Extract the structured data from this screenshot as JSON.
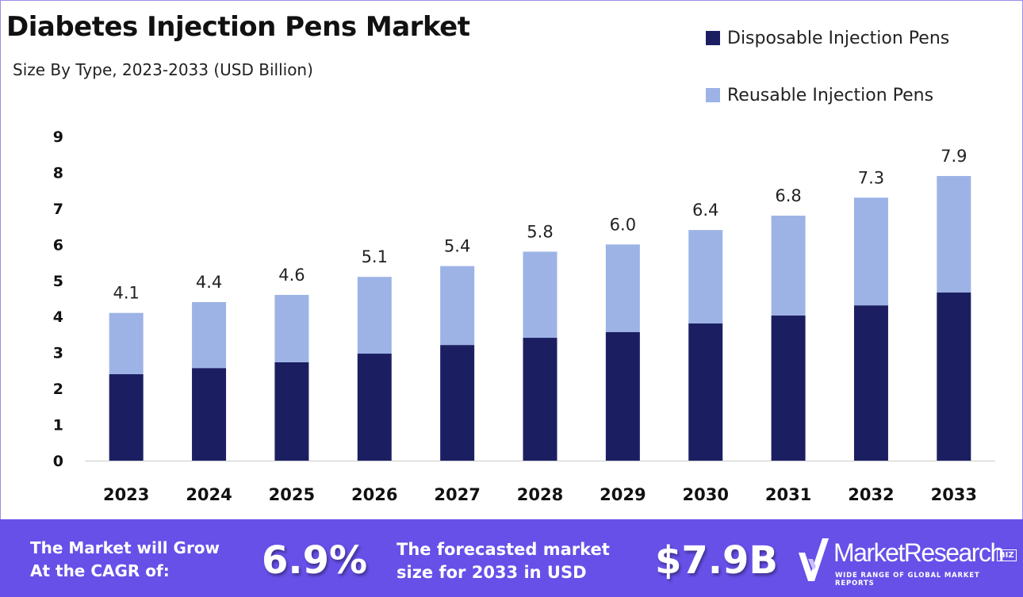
{
  "chart_data": {
    "type": "bar",
    "stacked": true,
    "title": "Diabetes Injection Pens Market",
    "subtitle": "Size By Type, 2023-2033 (USD Billion)",
    "categories": [
      "2023",
      "2024",
      "2025",
      "2026",
      "2027",
      "2028",
      "2029",
      "2030",
      "2031",
      "2032",
      "2033"
    ],
    "series": [
      {
        "name": "Disposable Injection Pens",
        "color": "#1b1f62",
        "values": [
          2.4,
          2.57,
          2.73,
          2.97,
          3.21,
          3.41,
          3.57,
          3.81,
          4.03,
          4.31,
          4.67
        ]
      },
      {
        "name": "Reusable Injection Pens",
        "color": "#9db3e6",
        "values": [
          1.7,
          1.83,
          1.87,
          2.13,
          2.19,
          2.39,
          2.43,
          2.59,
          2.77,
          2.99,
          3.23
        ]
      }
    ],
    "totals": [
      "4.1",
      "4.4",
      "4.6",
      "5.1",
      "5.4",
      "5.8",
      "6.0",
      "6.4",
      "6.8",
      "7.3",
      "7.9"
    ],
    "ylim": [
      0,
      9
    ],
    "yticks": [
      "0",
      "1",
      "2",
      "3",
      "4",
      "5",
      "6",
      "7",
      "8",
      "9"
    ],
    "xlabel": "",
    "ylabel": "",
    "grid": false,
    "legend_position": "top-right"
  },
  "banner": {
    "cagr_label": [
      "The Market will Grow",
      "At the CAGR of:"
    ],
    "cagr_value": "6.9%",
    "forecast_label": [
      "The forecasted market",
      "size for 2033 in USD"
    ],
    "forecast_value": "$7.9B",
    "background": "#6650e8"
  },
  "logo": {
    "name": "MarketResearch",
    "badge": "BIZ",
    "tagline": "WIDE RANGE OF GLOBAL MARKET REPORTS"
  }
}
